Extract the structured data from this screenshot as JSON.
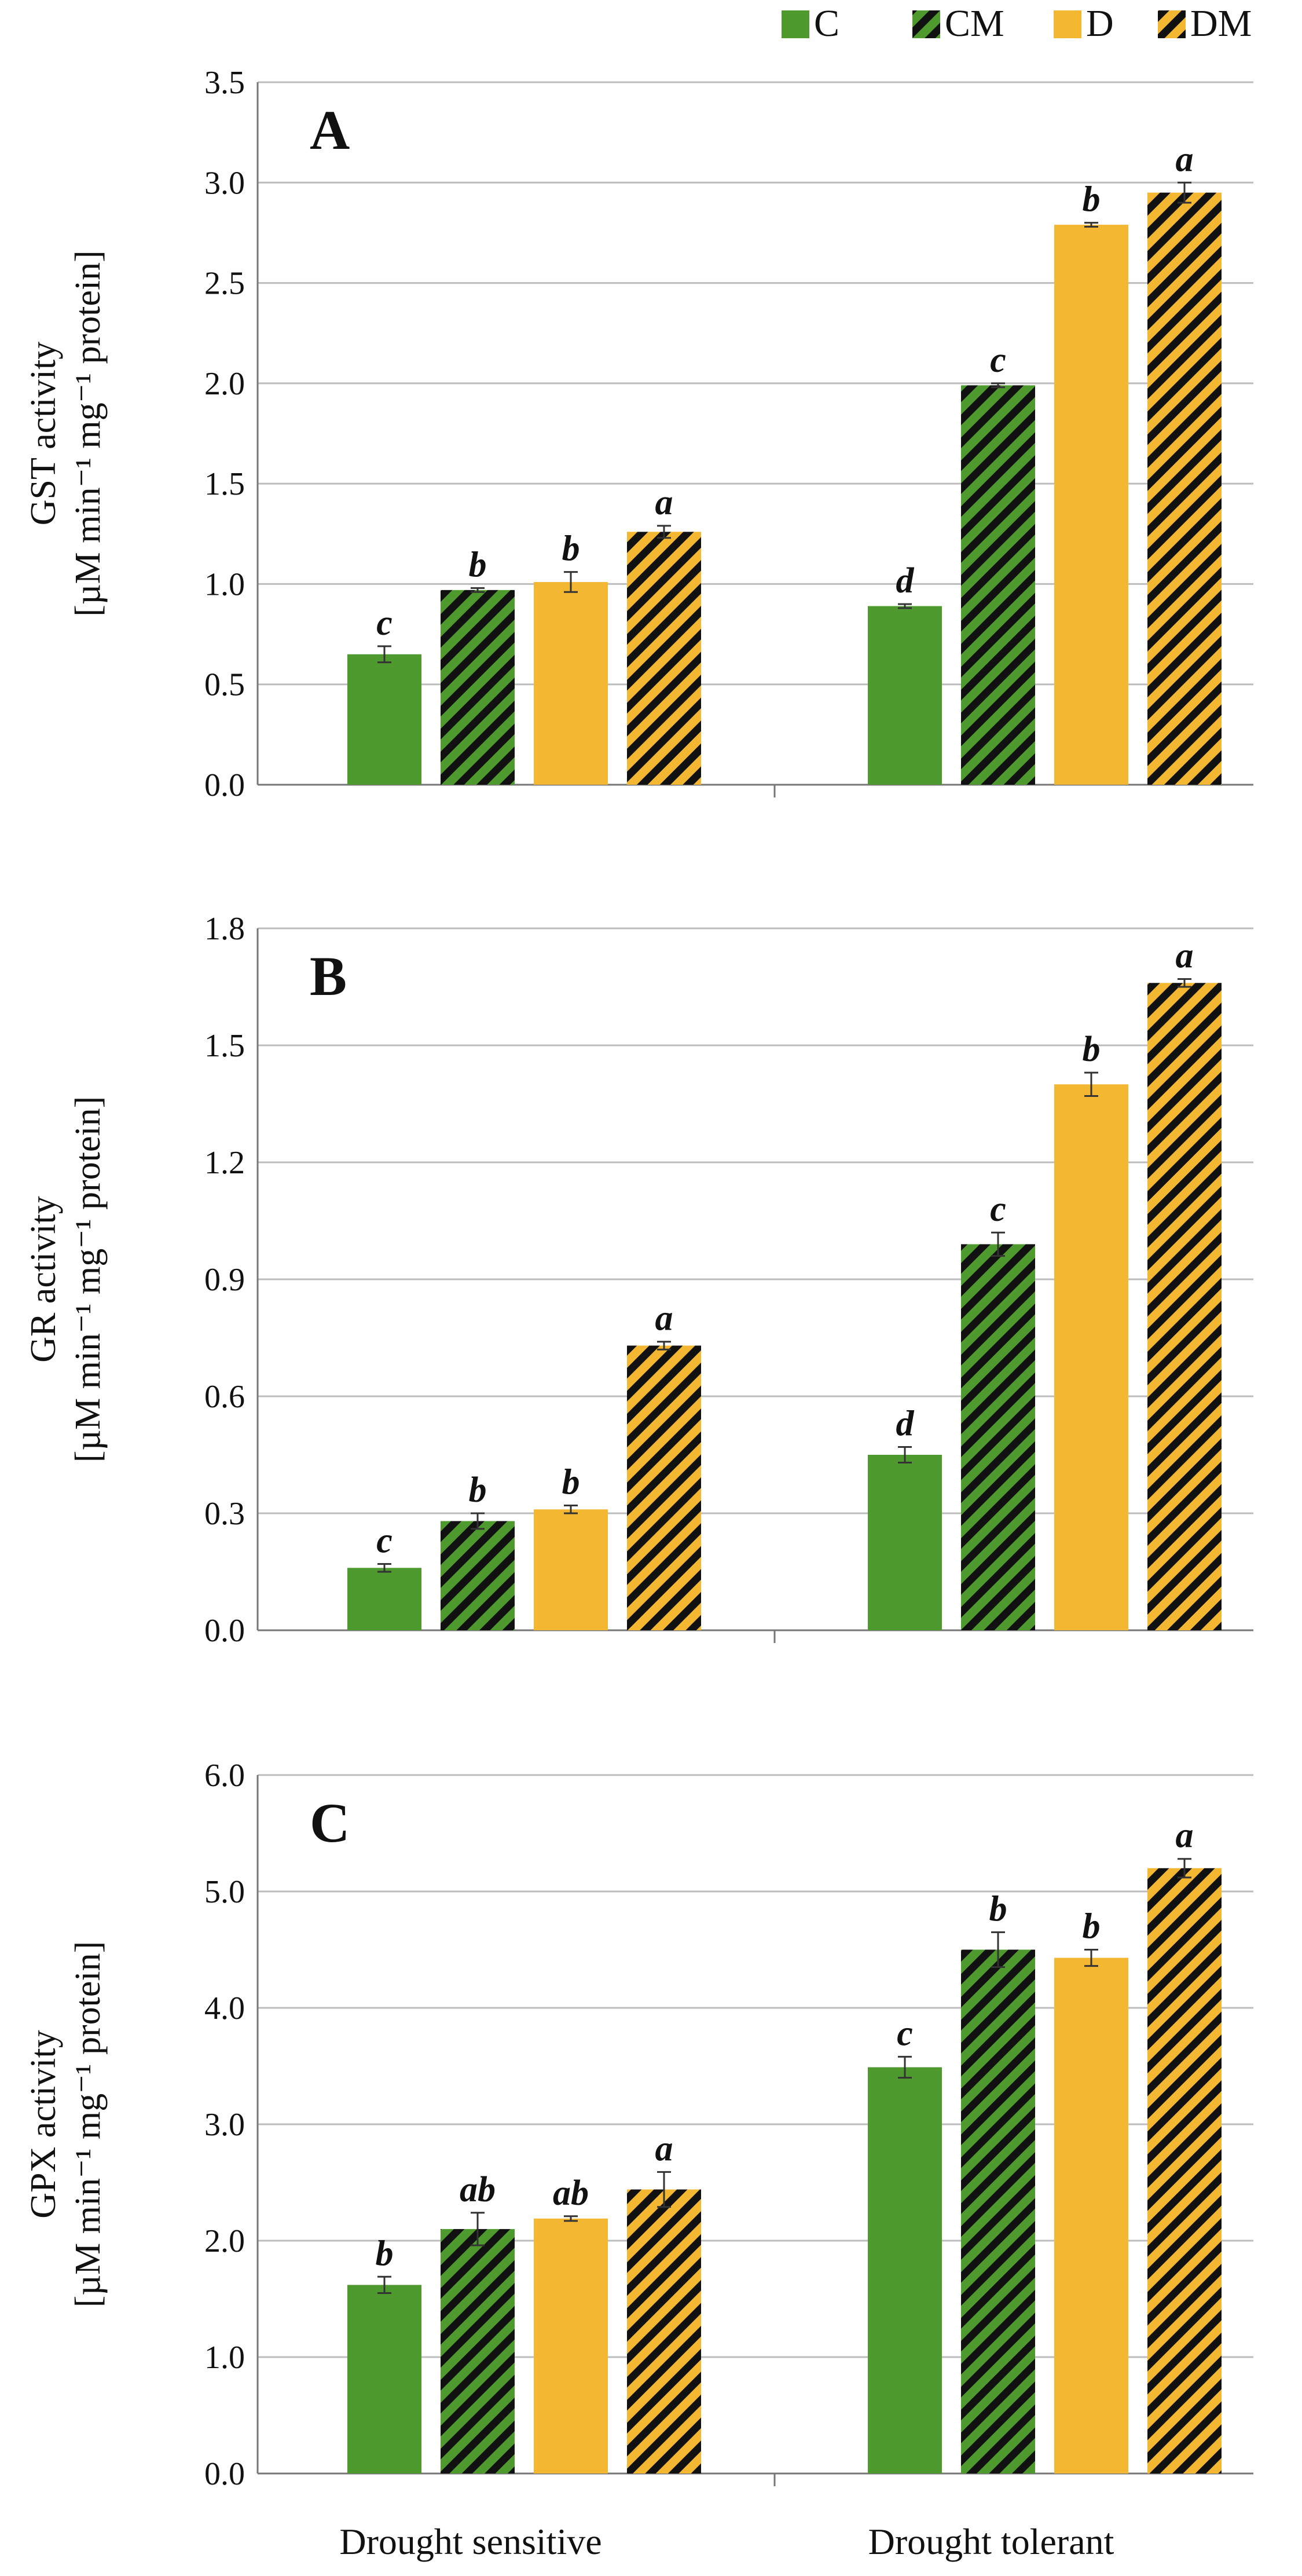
{
  "legend": [
    {
      "key": "C",
      "label": "C",
      "color": "#4f9a2f",
      "hatched": false
    },
    {
      "key": "CM",
      "label": "CM",
      "color": "#4f9a2f",
      "hatched": true
    },
    {
      "key": "D",
      "label": "D",
      "color": "#f4b731",
      "hatched": false
    },
    {
      "key": "DM",
      "label": "DM",
      "color": "#f4b731",
      "hatched": true
    }
  ],
  "colors": {
    "green": "#4f9a2f",
    "gold": "#f4b731",
    "hatch": "#111111",
    "gridline": "#bdbdbd",
    "axis": "#777777"
  },
  "chart_data": [
    {
      "type": "bar",
      "panel_label": "A",
      "ylabel_line1": "GST activity",
      "ylabel_line2": "[µM min⁻¹ mg⁻¹ protein]",
      "ylim": [
        0,
        3.5
      ],
      "yticks": [
        "0.0",
        "0.5",
        "1.0",
        "1.5",
        "2.0",
        "2.5",
        "3.0",
        "3.5"
      ],
      "grid": true,
      "categories": [
        "Drought sensitive",
        "Drought tolerant"
      ],
      "series": [
        {
          "name": "C",
          "values": [
            0.65,
            0.89
          ],
          "errors": [
            0.04,
            0.01
          ],
          "letters": [
            "c",
            "d"
          ]
        },
        {
          "name": "CM",
          "values": [
            0.97,
            1.99
          ],
          "errors": [
            0.01,
            0.01
          ],
          "letters": [
            "b",
            "c"
          ]
        },
        {
          "name": "D",
          "values": [
            1.01,
            2.79
          ],
          "errors": [
            0.05,
            0.01
          ],
          "letters": [
            "b",
            "b"
          ]
        },
        {
          "name": "DM",
          "values": [
            1.26,
            2.95
          ],
          "errors": [
            0.03,
            0.05
          ],
          "letters": [
            "a",
            "a"
          ]
        }
      ]
    },
    {
      "type": "bar",
      "panel_label": "B",
      "ylabel_line1": "GR activity",
      "ylabel_line2": "[µM min⁻¹ mg⁻¹ protein]",
      "ylim": [
        0,
        1.8
      ],
      "yticks": [
        "0.0",
        "0.3",
        "0.6",
        "0.9",
        "1.2",
        "1.5",
        "1.8"
      ],
      "grid": true,
      "categories": [
        "Drought sensitive",
        "Drought tolerant"
      ],
      "series": [
        {
          "name": "C",
          "values": [
            0.16,
            0.45
          ],
          "errors": [
            0.01,
            0.02
          ],
          "letters": [
            "c",
            "d"
          ]
        },
        {
          "name": "CM",
          "values": [
            0.28,
            0.99
          ],
          "errors": [
            0.02,
            0.03
          ],
          "letters": [
            "b",
            "c"
          ]
        },
        {
          "name": "D",
          "values": [
            0.31,
            1.4
          ],
          "errors": [
            0.01,
            0.03
          ],
          "letters": [
            "b",
            "b"
          ]
        },
        {
          "name": "DM",
          "values": [
            0.73,
            1.66
          ],
          "errors": [
            0.01,
            0.01
          ],
          "letters": [
            "a",
            "a"
          ]
        }
      ]
    },
    {
      "type": "bar",
      "panel_label": "C",
      "ylabel_line1": "GPX activity",
      "ylabel_line2": "[µM min⁻¹ mg⁻¹ protein]",
      "ylim": [
        0,
        6.0
      ],
      "yticks": [
        "0.0",
        "1.0",
        "2.0",
        "3.0",
        "4.0",
        "5.0",
        "6.0"
      ],
      "grid": true,
      "categories": [
        "Drought sensitive",
        "Drought tolerant"
      ],
      "series": [
        {
          "name": "C",
          "values": [
            1.62,
            3.49
          ],
          "errors": [
            0.07,
            0.09
          ],
          "letters": [
            "b",
            "c"
          ]
        },
        {
          "name": "CM",
          "values": [
            2.1,
            4.5
          ],
          "errors": [
            0.14,
            0.15
          ],
          "letters": [
            "ab",
            "b"
          ]
        },
        {
          "name": "D",
          "values": [
            2.19,
            4.43
          ],
          "errors": [
            0.02,
            0.07
          ],
          "letters": [
            "ab",
            "b"
          ]
        },
        {
          "name": "DM",
          "values": [
            2.44,
            5.2
          ],
          "errors": [
            0.15,
            0.08
          ],
          "letters": [
            "a",
            "a"
          ]
        }
      ]
    }
  ]
}
